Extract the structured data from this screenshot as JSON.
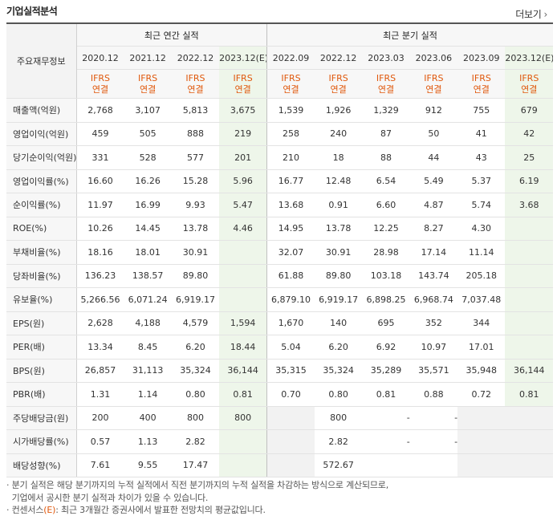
{
  "title": "기업실적분석",
  "more_label": "더보기",
  "label_header": "주요재무정보",
  "groups": {
    "annual": "최근 연간 실적",
    "quarterly": "최근 분기 실적"
  },
  "periods": [
    "2020.12",
    "2021.12",
    "2022.12",
    "2023.12(E)",
    "2022.09",
    "2022.12",
    "2023.03",
    "2023.06",
    "2023.09",
    "2023.12(E)"
  ],
  "ifrs_line1": "IFRS",
  "ifrs_line2": "연결",
  "rows": [
    {
      "label": "매출액(억원)",
      "values": [
        "2,768",
        "3,107",
        "5,813",
        "3,675",
        "1,539",
        "1,926",
        "1,329",
        "912",
        "755",
        "679"
      ]
    },
    {
      "label": "영업이익(억원)",
      "values": [
        "459",
        "505",
        "888",
        "219",
        "258",
        "240",
        "87",
        "50",
        "41",
        "42"
      ]
    },
    {
      "label": "당기순이익(억원)",
      "values": [
        "331",
        "528",
        "577",
        "201",
        "210",
        "18",
        "88",
        "44",
        "43",
        "25"
      ]
    },
    {
      "label": "영업이익률(%)",
      "values": [
        "16.60",
        "16.26",
        "15.28",
        "5.96",
        "16.77",
        "12.48",
        "6.54",
        "5.49",
        "5.37",
        "6.19"
      ]
    },
    {
      "label": "순이익률(%)",
      "values": [
        "11.97",
        "16.99",
        "9.93",
        "5.47",
        "13.68",
        "0.91",
        "6.60",
        "4.87",
        "5.74",
        "3.68"
      ]
    },
    {
      "label": "ROE(%)",
      "values": [
        "10.26",
        "14.45",
        "13.78",
        "4.46",
        "14.95",
        "13.78",
        "12.25",
        "8.27",
        "4.30",
        ""
      ]
    },
    {
      "label": "부채비율(%)",
      "values": [
        "18.16",
        "18.01",
        "30.91",
        "",
        "32.07",
        "30.91",
        "28.98",
        "17.14",
        "11.14",
        ""
      ]
    },
    {
      "label": "당좌비율(%)",
      "values": [
        "136.23",
        "138.57",
        "89.80",
        "",
        "61.88",
        "89.80",
        "103.18",
        "143.74",
        "205.18",
        ""
      ]
    },
    {
      "label": "유보율(%)",
      "values": [
        "5,266.56",
        "6,071.24",
        "6,919.17",
        "",
        "6,879.10",
        "6,919.17",
        "6,898.25",
        "6,968.74",
        "7,037.48",
        ""
      ]
    },
    {
      "label": "EPS(원)",
      "values": [
        "2,628",
        "4,188",
        "4,579",
        "1,594",
        "1,670",
        "140",
        "695",
        "352",
        "344",
        ""
      ]
    },
    {
      "label": "PER(배)",
      "values": [
        "13.34",
        "8.45",
        "6.20",
        "18.44",
        "5.04",
        "6.20",
        "6.92",
        "10.97",
        "17.01",
        ""
      ]
    },
    {
      "label": "BPS(원)",
      "values": [
        "26,857",
        "31,113",
        "35,324",
        "36,144",
        "35,315",
        "35,324",
        "35,289",
        "35,571",
        "35,948",
        "36,144"
      ]
    },
    {
      "label": "PBR(배)",
      "values": [
        "1.31",
        "1.14",
        "0.80",
        "0.81",
        "0.70",
        "0.80",
        "0.81",
        "0.88",
        "0.72",
        "0.81"
      ]
    },
    {
      "label": "주당배당금(원)",
      "values": [
        "200",
        "400",
        "800",
        "800",
        "",
        "800",
        "-",
        "-",
        "",
        ""
      ]
    },
    {
      "label": "시가배당률(%)",
      "values": [
        "0.57",
        "1.13",
        "2.82",
        "",
        "",
        "2.82",
        "-",
        "-",
        "",
        ""
      ]
    },
    {
      "label": "배당성향(%)",
      "values": [
        "7.61",
        "9.55",
        "17.47",
        "",
        "",
        "572.67",
        "",
        "",
        "",
        ""
      ]
    }
  ],
  "notes": {
    "line1": "분기 실적은 해당 분기까지의 누적 실적에서 직전 분기까지의 누적 실적을 차감하는 방식으로 계산되므로,",
    "line2": "기업에서 공시한 분기 실적과 차이가 있을 수 있습니다.",
    "line3_prefix": "컨센서스",
    "line3_mark": "(E)",
    "line3_suffix": ": 최근 3개월간 증권사에서 발표한 전망치의 평균값입니다."
  }
}
